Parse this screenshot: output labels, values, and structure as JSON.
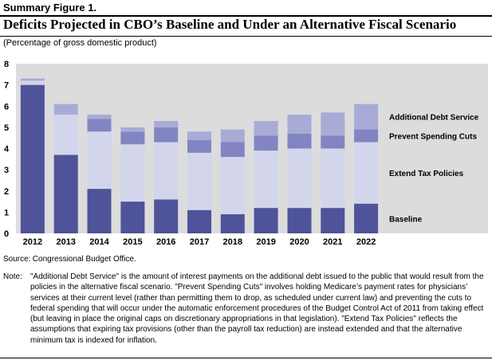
{
  "figure_label": "Summary Figure 1.",
  "title": "Deficits Projected in CBO’s Baseline and Under an Alternative Fiscal Scenario",
  "subtitle": "(Percentage of gross domestic product)",
  "chart_data": {
    "type": "bar",
    "stacked": true,
    "categories": [
      "2012",
      "2013",
      "2014",
      "2015",
      "2016",
      "2017",
      "2018",
      "2019",
      "2020",
      "2021",
      "2022"
    ],
    "ylim": [
      0,
      8
    ],
    "yticks": [
      "0",
      "1",
      "2",
      "3",
      "4",
      "5",
      "6",
      "7",
      "8"
    ],
    "grid": false,
    "legend_position": "right, inline labels",
    "series": [
      {
        "name": "Baseline",
        "color": "#4f5399",
        "values": [
          7.0,
          3.7,
          2.1,
          1.5,
          1.6,
          1.1,
          0.9,
          1.2,
          1.2,
          1.2,
          1.4
        ]
      },
      {
        "name": "Extend Tax Policies",
        "color": "#d3d5ec",
        "values": [
          0.2,
          1.9,
          2.7,
          2.7,
          2.7,
          2.7,
          2.7,
          2.7,
          2.8,
          2.8,
          2.9
        ]
      },
      {
        "name": "Prevent Spending Cuts",
        "color": "#8285c1",
        "values": [
          0.0,
          0.0,
          0.6,
          0.6,
          0.7,
          0.6,
          0.7,
          0.7,
          0.7,
          0.6,
          0.6
        ]
      },
      {
        "name": "Additional Debt Service",
        "color": "#a8abd6",
        "values": [
          0.1,
          0.5,
          0.2,
          0.2,
          0.3,
          0.4,
          0.6,
          0.7,
          0.9,
          1.1,
          1.2
        ]
      }
    ],
    "background_color": "#dcdcdc"
  },
  "source": {
    "label": "Source:",
    "text": "Congressional Budget Office."
  },
  "note": {
    "label": "Note:",
    "text": "\"Additional Debt Service\" is the amount of interest payments on the additional debt issued to the public that would result from the policies in the alternative fiscal scenario. \"Prevent Spending Cuts\" involves holding Medicare’s payment rates for physicians’ services at their current level (rather than permitting them to drop, as scheduled under current law) and preventing the cuts to federal spending that will occur under the automatic enforcement procedures of the Budget Control Act of 2011 from taking effect (but leaving in place the original caps on discretionary appropriations in that legislation). \"Extend Tax Policies\" reflects the assumptions that expiring tax provisions (other than the payroll tax reduction) are instead extended and that the alternative minimum tax is indexed for inflation."
  }
}
